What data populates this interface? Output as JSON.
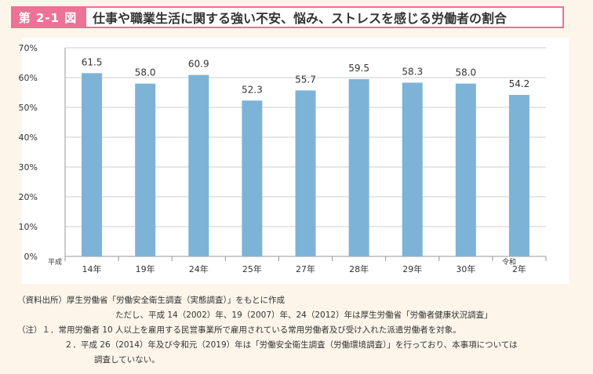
{
  "header": {
    "figure_label": "第 2-1 図",
    "title": "仕事や職業生活に関する強い不安、悩み、ストレスを感じる労働者の割合"
  },
  "colors": {
    "bar": "#7eb3d8",
    "accent": "#ec7395",
    "grid": "#cccccc"
  },
  "chart_data": {
    "type": "bar",
    "categories": [
      "14年",
      "19年",
      "24年",
      "25年",
      "27年",
      "28年",
      "29年",
      "30年",
      "2年"
    ],
    "era_labels": [
      {
        "index": 0,
        "label": "平成"
      },
      {
        "index": 8,
        "label": "令和"
      }
    ],
    "values": [
      61.5,
      58.0,
      60.9,
      52.3,
      55.7,
      59.5,
      58.3,
      58.0,
      54.2
    ],
    "data_labels": [
      "61.5",
      "58.0",
      "60.9",
      "52.3",
      "55.7",
      "59.5",
      "58.3",
      "58.0",
      "54.2"
    ],
    "ylim": [
      0,
      70
    ],
    "yticks": [
      "0%",
      "10%",
      "20%",
      "30%",
      "40%",
      "50%",
      "60%",
      "70%"
    ],
    "grid": true,
    "xlabel": "",
    "ylabel": ""
  },
  "notes": [
    "（資料出所）厚生労働省「労働安全衛生調査（実態調査）」をもとに作成",
    "ただし、平成 14（2002）年、19（2007）年、24（2012）年は厚生労働省「労働者健康状況調査」",
    "（注）１．常用労働者 10 人以上を雇用する民営事業所で雇用されている常用労働者及び受け入れた派遣労働者を対象。",
    "２．平成 26（2014）年及び令和元（2019）年は「労働安全衛生調査（労働環境調査）」を行っており、本事項については",
    "調査していない。"
  ]
}
